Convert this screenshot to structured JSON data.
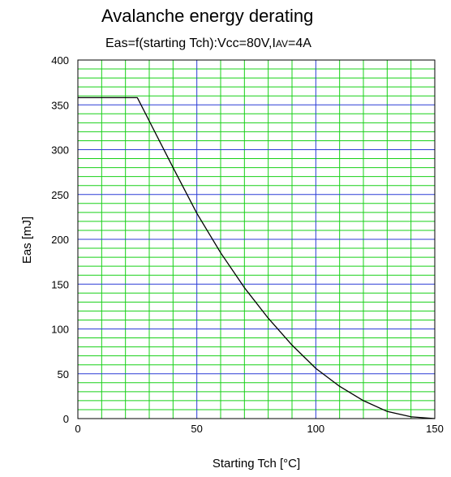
{
  "chart_data": {
    "type": "line",
    "title": "Avalanche energy derating",
    "subtitle": "Eas=f(starting Tch):Vcc=80V,IAV=4A",
    "subtitle_parts": {
      "main": "Eas=f(starting Tch):Vcc=80V,I",
      "sub": "AV",
      "tail": "=4A"
    },
    "xlabel": "Starting Tch [°C]",
    "ylabel": "Eas [mJ]",
    "xlim": [
      0,
      150
    ],
    "ylim": [
      0,
      400
    ],
    "x_major_ticks": [
      0,
      50,
      100,
      150
    ],
    "x_minor_step": 10,
    "y_major_ticks": [
      0,
      50,
      100,
      150,
      200,
      250,
      300,
      350,
      400
    ],
    "y_minor_step": 10,
    "grid": true,
    "colors": {
      "major_grid": "#2b3bd6",
      "minor_grid": "#18d018",
      "curve": "#000000",
      "frame": "#000000"
    },
    "series": [
      {
        "x": [
          0,
          25,
          30,
          40,
          50,
          60,
          70,
          80,
          90,
          100,
          110,
          120,
          130,
          140,
          150
        ],
        "y": [
          358,
          358,
          332,
          280,
          229,
          185,
          146,
          112,
          82,
          56,
          36,
          20,
          8,
          2,
          0
        ]
      }
    ]
  }
}
